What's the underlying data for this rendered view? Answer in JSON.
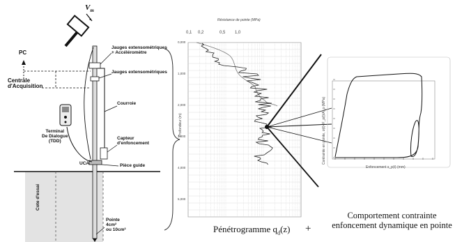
{
  "setup": {
    "velocity_label": "V",
    "velocity_sub": "m",
    "pc": "PC",
    "centrale_line1": "Centrale",
    "centrale_line2": "d'Acquisition",
    "jauges_accel_line1": "Jauges extensométriques",
    "jauges_accel_line2": "+ Accéléromètre",
    "jauges": "Jauges extensométriques",
    "courroie": "Courroie",
    "terminal_line1": "Terminal",
    "terminal_line2": "De Dialogue",
    "terminal_line3": "(TDD)",
    "capteur_line1": "Capteur",
    "capteur_line2": "d'enfoncement",
    "uca": "UCA",
    "piece_guide": "Pièce guide",
    "cote": "Cote d'essai",
    "pointe_line1": "Pointe",
    "pointe_line2": "4cm²",
    "pointe_line3": "ou 10cm²"
  },
  "penetrogram": {
    "title": "Résistance de pointe (MPa)",
    "xticks": [
      "0,1",
      "0,2",
      "0,5",
      "1,0"
    ],
    "ylabel": "Profondeur (m)",
    "yticks": [
      "0,000",
      "1,000",
      "2,000",
      "3,000",
      "4,000",
      "5,000"
    ],
    "caption": "Pénétrogramme q",
    "caption_sub": "d",
    "caption_tail": "(z)"
  },
  "plus": "+",
  "loop_chart": {
    "ylabel": "Contrainte en pointe, σ(t)=F_p(t)/A_p (MPa)",
    "xlabel": "Enfoncement s_p(t) (mm)",
    "caption_line1": "Comportement contrainte",
    "caption_line2": "enfoncement dynamique en pointe"
  }
}
